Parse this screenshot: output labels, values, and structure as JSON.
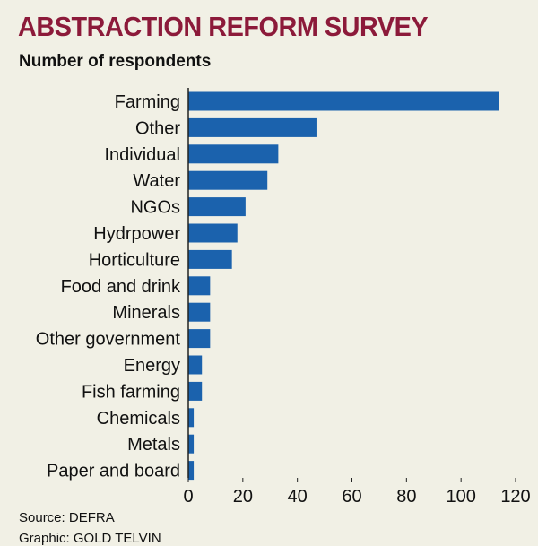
{
  "title": "ABSTRACTION REFORM SURVEY",
  "subtitle": "Number of respondents",
  "source": "Source: DEFRA",
  "cutoff_text": "Graphic: GOLD TELVIN",
  "colors": {
    "title": "#8c1a3a",
    "bar": "#1b62ad",
    "background": "#f1f0e5",
    "axis": "#222222"
  },
  "chart_data": {
    "type": "bar",
    "orientation": "horizontal",
    "title": "ABSTRACTION REFORM SURVEY",
    "subtitle": "Number of respondents",
    "categories": [
      "Farming",
      "Other",
      "Individual",
      "Water",
      "NGOs",
      "Hydrpower",
      "Horticulture",
      "Food and drink",
      "Minerals",
      "Other government",
      "Energy",
      "Fish farming",
      "Chemicals",
      "Metals",
      "Paper and board"
    ],
    "values": [
      114,
      47,
      33,
      29,
      21,
      18,
      16,
      8,
      8,
      8,
      5,
      5,
      2,
      2,
      2
    ],
    "xlim": [
      0,
      120
    ],
    "xticks": [
      0,
      20,
      40,
      60,
      80,
      100,
      120
    ],
    "grid": false,
    "legend": "none"
  }
}
